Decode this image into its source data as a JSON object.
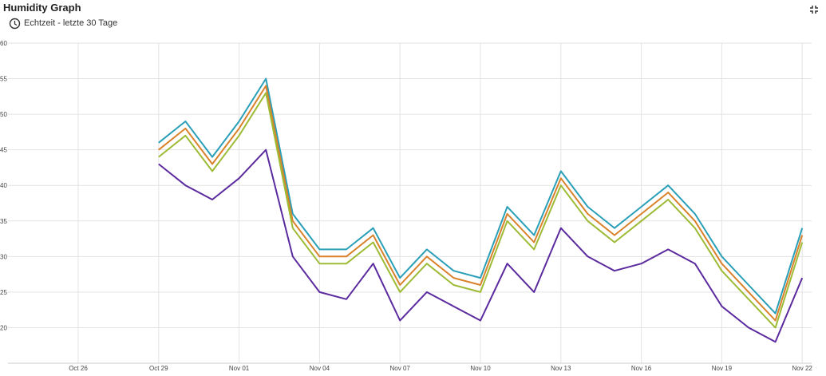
{
  "header": {
    "title": "Humidity Graph",
    "subtitle": "Echtzeit - letzte 30 Tage"
  },
  "chart_data": {
    "type": "line",
    "categories": [
      null,
      null,
      null,
      "Oct 26",
      null,
      null,
      "Oct 29",
      null,
      null,
      "Nov 01",
      null,
      null,
      "Nov 04",
      null,
      null,
      "Nov 07",
      null,
      null,
      "Nov 10",
      null,
      null,
      "Nov 13",
      null,
      null,
      "Nov 16",
      null,
      null,
      "Nov 19",
      null,
      null,
      "Nov 22"
    ],
    "series": [
      {
        "color": "#2a9fb8",
        "values": [
          null,
          null,
          null,
          null,
          null,
          null,
          46,
          49,
          44,
          49,
          55,
          36,
          31,
          31,
          34,
          27,
          31,
          28,
          27,
          37,
          33,
          42,
          37,
          34,
          37,
          40,
          36,
          30,
          26,
          22,
          34
        ]
      },
      {
        "color": "#d9822b",
        "values": [
          null,
          null,
          null,
          null,
          null,
          null,
          45,
          48,
          43,
          48,
          54,
          35,
          30,
          30,
          33,
          26,
          30,
          27,
          26,
          36,
          32,
          41,
          36,
          33,
          36,
          39,
          35,
          29,
          25,
          21,
          33
        ]
      },
      {
        "color": "#9dbb35",
        "values": [
          null,
          null,
          null,
          null,
          null,
          null,
          44,
          47,
          42,
          47,
          53,
          34,
          29,
          29,
          32,
          25,
          29,
          26,
          25,
          35,
          31,
          40,
          35,
          32,
          35,
          38,
          34,
          28,
          24,
          20,
          32
        ]
      },
      {
        "color": "#5b2a9e",
        "values": [
          null,
          null,
          null,
          null,
          null,
          null,
          43,
          40,
          38,
          41,
          45,
          30,
          25,
          24,
          29,
          21,
          25,
          23,
          21,
          29,
          25,
          34,
          30,
          28,
          29,
          31,
          29,
          23,
          20,
          18,
          27
        ]
      }
    ],
    "ylim": [
      15,
      60
    ],
    "yticks": [
      20,
      25,
      30,
      35,
      40,
      45,
      50,
      55,
      60
    ],
    "grid": true
  }
}
